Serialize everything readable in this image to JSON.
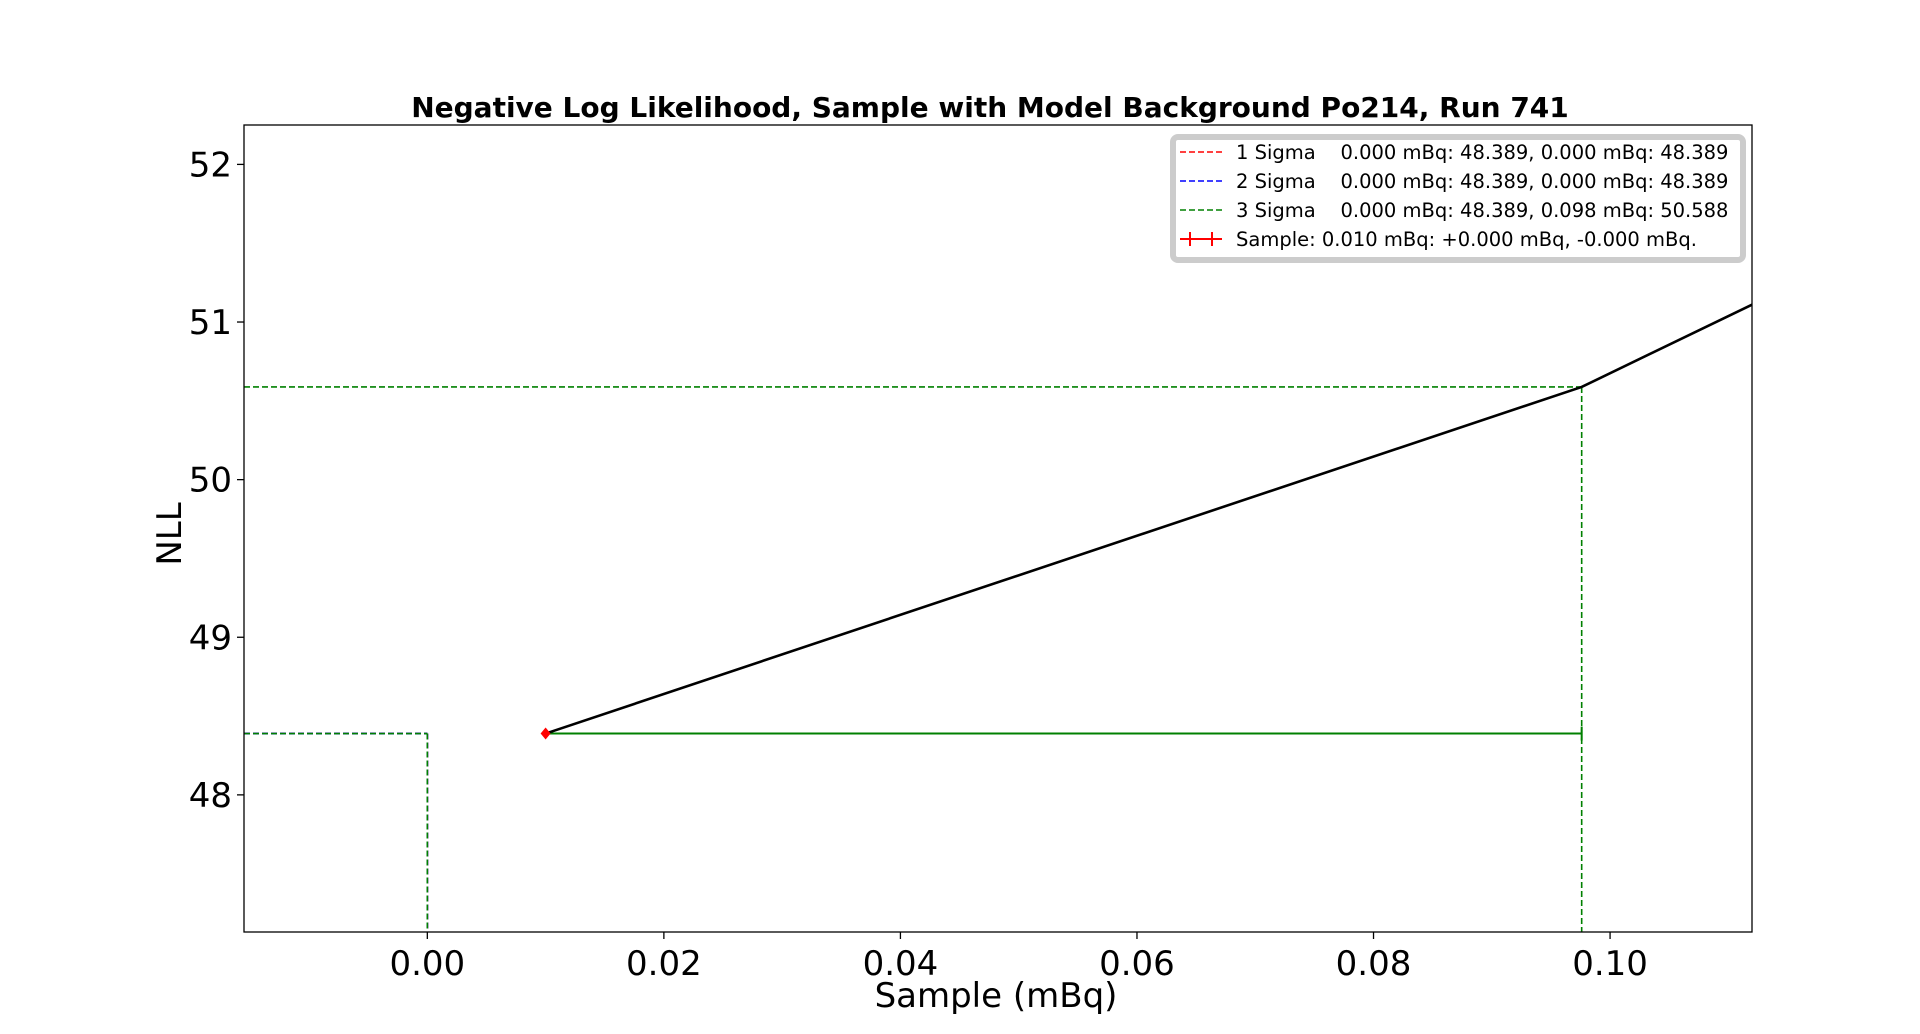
{
  "chart_data": {
    "type": "line",
    "title": "Negative Log Likelihood, Sample with Model Background Po214, Run 741",
    "xlabel": "Sample (mBq)",
    "ylabel": "NLL",
    "xlim": [
      -0.0155,
      0.112
    ],
    "ylim": [
      47.13,
      52.25
    ],
    "x_ticks": [
      0.0,
      0.02,
      0.04,
      0.06,
      0.08,
      0.1
    ],
    "x_tick_labels": [
      "0.00",
      "0.02",
      "0.04",
      "0.06",
      "0.08",
      "0.10"
    ],
    "y_ticks": [
      48,
      49,
      50,
      51,
      52
    ],
    "y_tick_labels": [
      "48",
      "49",
      "50",
      "51",
      "52"
    ],
    "grid": false,
    "legend_position": "top-right",
    "series": [
      {
        "kind": "curve",
        "color": "#000000",
        "x": [
          0.01,
          0.0976,
          0.112
        ],
        "y": [
          48.389,
          50.588,
          51.11
        ]
      },
      {
        "kind": "sigma",
        "name": "1 Sigma    0.000 mBq: 48.389, 0.000 mBq: 48.389",
        "color": "#ff0000",
        "lower": {
          "x": 0.0,
          "y": 48.389
        },
        "upper": {
          "x": 0.0,
          "y": 48.389
        }
      },
      {
        "kind": "sigma",
        "name": "2 Sigma    0.000 mBq: 48.389, 0.000 mBq: 48.389",
        "color": "#0000ff",
        "lower": {
          "x": 0.0,
          "y": 48.389
        },
        "upper": {
          "x": 0.0,
          "y": 48.389
        }
      },
      {
        "kind": "sigma",
        "name": "3 Sigma    0.000 mBq: 48.389, 0.098 mBq: 50.588",
        "color": "#008000",
        "lower": {
          "x": 0.0,
          "y": 48.389
        },
        "upper": {
          "x": 0.0976,
          "y": 50.588
        }
      },
      {
        "kind": "errorbar",
        "name": "Sample: 0.010 mBq: +0.000 mBq, -0.000 mBq.",
        "color": "#ff0000",
        "x": 0.01,
        "y": 48.389,
        "xerr_plus": 0.0,
        "xerr_minus": 0.0
      }
    ],
    "interval_bar": {
      "color": "#008000",
      "x_start": 0.01,
      "x_end": 0.0976,
      "y": 48.389
    }
  }
}
